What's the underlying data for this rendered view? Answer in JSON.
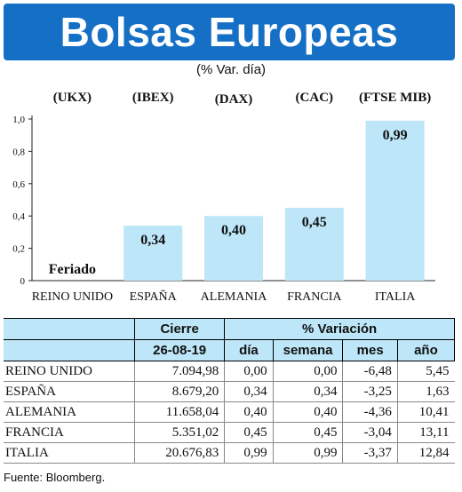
{
  "header": {
    "title": "Bolsas Europeas",
    "subtitle": "(% Var. día)"
  },
  "chart_data": {
    "type": "bar",
    "categories": [
      "REINO UNIDO",
      "ESPAÑA",
      "ALEMANIA",
      "FRANCIA",
      "ITALIA"
    ],
    "indices": [
      "(UKX)",
      "(IBEX)",
      "(DAX)",
      "(CAC)",
      "(FTSE MIB)"
    ],
    "values": [
      null,
      0.34,
      0.4,
      0.45,
      0.99
    ],
    "bar_labels": [
      "Feriado",
      "0,34",
      "0,40",
      "0,45",
      "0,99"
    ],
    "yticks": [
      "0",
      "0,2",
      "0,4",
      "0,6",
      "0,8",
      "1,0"
    ],
    "ylim": [
      0,
      1.0
    ],
    "grid": false,
    "bar_color": "#bde6f8"
  },
  "table": {
    "group_headers": [
      "Cierre",
      "% Variación"
    ],
    "columns": [
      "26-08-19",
      "día",
      "semana",
      "mes",
      "año"
    ],
    "rows": [
      {
        "name": "REINO UNIDO",
        "cierre": "7.094,98",
        "dia": "0,00",
        "semana": "0,00",
        "mes": "-6,48",
        "ano": "5,45"
      },
      {
        "name": "ESPAÑA",
        "cierre": "8.679,20",
        "dia": "0,34",
        "semana": "0,34",
        "mes": "-3,25",
        "ano": "1,63"
      },
      {
        "name": "ALEMANIA",
        "cierre": "11.658,04",
        "dia": "0,40",
        "semana": "0,40",
        "mes": "-4,36",
        "ano": "10,41"
      },
      {
        "name": "FRANCIA",
        "cierre": "5.351,02",
        "dia": "0,45",
        "semana": "0,45",
        "mes": "-3,04",
        "ano": "13,11"
      },
      {
        "name": "ITALIA",
        "cierre": "20.676,83",
        "dia": "0,99",
        "semana": "0,99",
        "mes": "-3,37",
        "ano": "12,84"
      }
    ]
  },
  "source": "Fuente: Bloomberg.",
  "colors": {
    "banner": "#1570c5",
    "bar": "#bde6f8",
    "header_cell": "#bde6f8"
  }
}
